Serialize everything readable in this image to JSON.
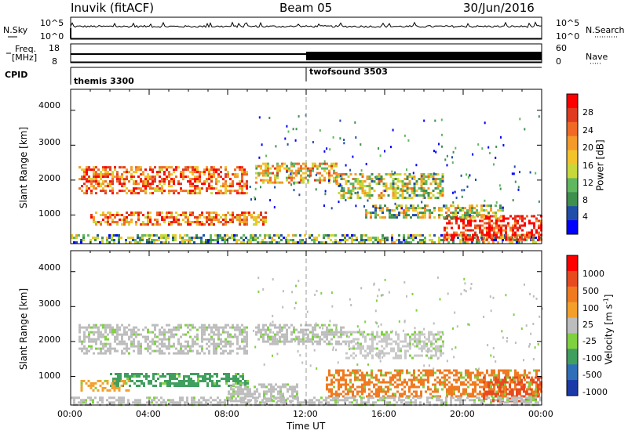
{
  "header": {
    "station": "Inuvik (fitACF)",
    "beam": "Beam 05",
    "date": "30/Jun/2016"
  },
  "top_panels": {
    "nsky_label": "N.Sky",
    "nsearch_label": "N.Search",
    "nsky_ticks": [
      "10^5",
      "10^0"
    ],
    "nsearch_ticks": [
      "10^5",
      "10^0"
    ],
    "freq_label_1": "Freq.",
    "freq_label_2": "[MHz]",
    "freq_ticks": [
      "18",
      "8"
    ],
    "nave_label": "Nave",
    "nave_ticks": [
      "60",
      "0"
    ],
    "cpid_label": "CPID",
    "cpid_segments": [
      {
        "label": "themis 3300",
        "start_hour": 0
      },
      {
        "label": "twofsound 3503",
        "start_hour": 12
      }
    ]
  },
  "chart_data": [
    {
      "type": "heatmap",
      "name": "power-panel",
      "ylabel": "Slant Range [km]",
      "x_hours": [
        0,
        24
      ],
      "ylim": [
        180,
        4600
      ],
      "yticks": [
        "4000",
        "3000",
        "2000",
        "1000"
      ],
      "colorbar": {
        "label": "Power [dB]",
        "ticks": [
          "28",
          "24",
          "20",
          "16",
          "12",
          "8",
          "4"
        ],
        "colors": [
          "#0000ff",
          "#1f4fa8",
          "#3f8f4f",
          "#5fb85f",
          "#c8d83a",
          "#f2c32a",
          "#f39a2a",
          "#f06a25",
          "#e03a20",
          "#ff0000"
        ]
      },
      "bands": [
        {
          "x": [
            0.4,
            9.0
          ],
          "y": [
            1650,
            2400
          ],
          "level": 0.75
        },
        {
          "x": [
            9.4,
            13.5
          ],
          "y": [
            1900,
            2500
          ],
          "level": 0.55
        },
        {
          "x": [
            13.5,
            19.0
          ],
          "y": [
            1500,
            2200
          ],
          "level": 0.45
        },
        {
          "x": [
            1.0,
            10.0
          ],
          "y": [
            700,
            1100
          ],
          "level": 0.7
        },
        {
          "x": [
            0.0,
            24.0
          ],
          "y": [
            200,
            450
          ],
          "level": 0.35
        },
        {
          "x": [
            19.0,
            24.0
          ],
          "y": [
            300,
            1000
          ],
          "level": 0.9
        },
        {
          "x": [
            15.0,
            22.0
          ],
          "y": [
            900,
            1300
          ],
          "level": 0.45
        }
      ]
    },
    {
      "type": "heatmap",
      "name": "velocity-panel",
      "ylabel": "Slant Range [km]",
      "xlabel": "Time UT",
      "x_hours": [
        0,
        24
      ],
      "xticks": [
        "00:00",
        "04:00",
        "08:00",
        "12:00",
        "16:00",
        "20:00",
        "00:00"
      ],
      "ylim": [
        180,
        4600
      ],
      "yticks": [
        "4000",
        "3000",
        "2000",
        "1000"
      ],
      "colorbar": {
        "label": "Velocity [m s-1]",
        "ticks": [
          "1000",
          "500",
          "100",
          "25",
          "-25",
          "-100",
          "-500",
          "-1000"
        ],
        "colors": [
          "#1b3aa8",
          "#2f6fb8",
          "#3f9f5f",
          "#7fd13f",
          "#bdbdbd",
          "#f2a02a",
          "#f07a20",
          "#e84a20",
          "#ff0000"
        ]
      },
      "bands": [
        {
          "x": [
            0.4,
            9.0
          ],
          "y": [
            1650,
            2500
          ],
          "color": "#bdbdbd"
        },
        {
          "x": [
            9.4,
            14.0
          ],
          "y": [
            1900,
            2500
          ],
          "color": "#bdbdbd"
        },
        {
          "x": [
            14.0,
            19.0
          ],
          "y": [
            1500,
            2300
          ],
          "color": "#c9c9c9"
        },
        {
          "x": [
            2.0,
            9.0
          ],
          "y": [
            700,
            1100
          ],
          "color": "#3f9f5f"
        },
        {
          "x": [
            0.5,
            3.0
          ],
          "y": [
            600,
            900
          ],
          "color": "#f2a02a"
        },
        {
          "x": [
            8.0,
            11.5
          ],
          "y": [
            300,
            800
          ],
          "color": "#bdbdbd"
        },
        {
          "x": [
            13.0,
            24.0
          ],
          "y": [
            400,
            1200
          ],
          "color": "#f07a20"
        },
        {
          "x": [
            21.0,
            24.0
          ],
          "y": [
            300,
            1000
          ],
          "color": "#e84a20"
        },
        {
          "x": [
            0.0,
            24.0
          ],
          "y": [
            190,
            420
          ],
          "color": "#bdbdbd"
        }
      ]
    }
  ]
}
